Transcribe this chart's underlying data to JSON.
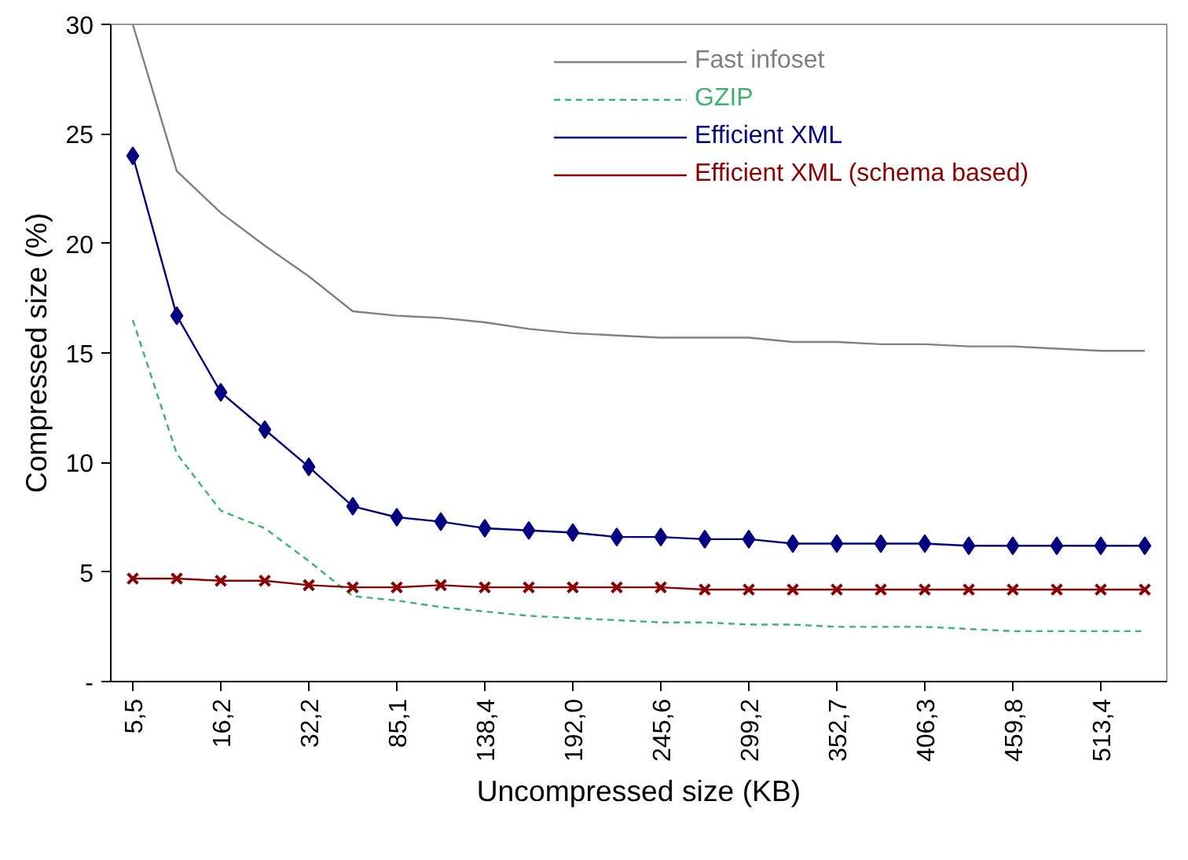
{
  "chart_data": {
    "type": "line",
    "xlabel": "Uncompressed size (KB)",
    "ylabel": "Compressed size (%)",
    "categories": [
      "5,5",
      null,
      "16,2",
      null,
      "32,2",
      null,
      "85,1",
      null,
      "138,4",
      null,
      "192,0",
      null,
      "245,6",
      null,
      "299,2",
      null,
      "352,7",
      null,
      "406,3",
      null,
      "459,8",
      null,
      "513,4",
      null
    ],
    "series": [
      {
        "name": "Fast infoset",
        "color": "#808080",
        "marker": "none",
        "line_style": "solid",
        "values": [
          30,
          23.3,
          21.4,
          19.9,
          18.5,
          16.9,
          16.7,
          16.6,
          16.4,
          16.1,
          15.9,
          15.8,
          15.7,
          15.7,
          15.7,
          15.5,
          15.5,
          15.4,
          15.4,
          15.3,
          15.3,
          15.2,
          15.1,
          15.1
        ]
      },
      {
        "name": "GZIP",
        "color": "#3cb371",
        "marker": "none",
        "line_style": "dashed",
        "values": [
          16.5,
          10.4,
          7.8,
          7.0,
          5.5,
          3.9,
          3.7,
          3.4,
          3.2,
          3.0,
          2.9,
          2.8,
          2.7,
          2.7,
          2.6,
          2.6,
          2.5,
          2.5,
          2.5,
          2.4,
          2.3,
          2.3,
          2.3,
          2.3
        ]
      },
      {
        "name": "Efficient XML",
        "color": "#000080",
        "marker": "diamond",
        "line_style": "solid",
        "values": [
          24,
          16.7,
          13.2,
          11.5,
          9.8,
          8.0,
          7.5,
          7.3,
          7.0,
          6.9,
          6.8,
          6.6,
          6.6,
          6.5,
          6.5,
          6.3,
          6.3,
          6.3,
          6.3,
          6.2,
          6.2,
          6.2,
          6.2,
          6.2
        ]
      },
      {
        "name": "Efficient XML (schema based)",
        "color": "#8b0000",
        "marker": "cross",
        "line_style": "solid",
        "values": [
          4.7,
          4.7,
          4.6,
          4.6,
          4.4,
          4.3,
          4.3,
          4.4,
          4.3,
          4.3,
          4.3,
          4.3,
          4.3,
          4.2,
          4.2,
          4.2,
          4.2,
          4.2,
          4.2,
          4.2,
          4.2,
          4.2,
          4.2,
          4.2
        ]
      }
    ],
    "ylim": [
      0,
      30
    ],
    "yticks": [
      {
        "value": 0,
        "label": "-"
      },
      5,
      10,
      15,
      20,
      25,
      30
    ],
    "grid": false,
    "legend": "top right"
  }
}
